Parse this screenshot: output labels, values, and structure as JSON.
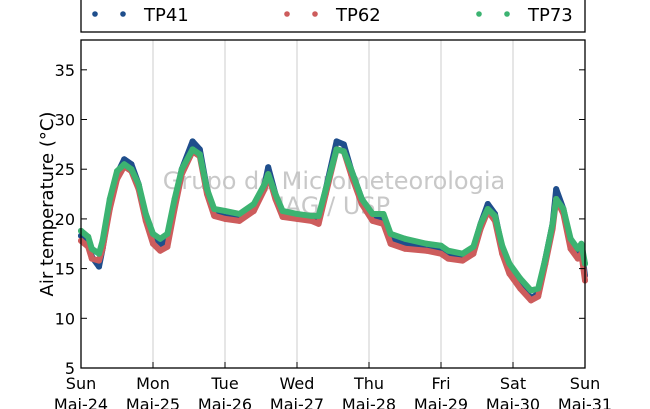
{
  "chart_data": {
    "type": "line",
    "ylabel": "Air temperature (°C)",
    "ylim": [
      5,
      38
    ],
    "yticks": [
      5,
      10,
      15,
      20,
      25,
      30,
      35
    ],
    "xlim": [
      0,
      7
    ],
    "xticks": [
      {
        "value": 0,
        "line1": "Sun",
        "line2": "Mai-24"
      },
      {
        "value": 1,
        "line1": "Mon",
        "line2": "Mai-25"
      },
      {
        "value": 2,
        "line1": "Tue",
        "line2": "Mai-26"
      },
      {
        "value": 3,
        "line1": "Wed",
        "line2": "Mai-27"
      },
      {
        "value": 4,
        "line1": "Thu",
        "line2": "Mai-28"
      },
      {
        "value": 5,
        "line1": "Fri",
        "line2": "Mai-29"
      },
      {
        "value": 6,
        "line1": "Sat",
        "line2": "Mai-30"
      },
      {
        "value": 7,
        "line1": "Sun",
        "line2": "Mai-31"
      }
    ],
    "grid": "vertical",
    "legend_position": "top",
    "watermark": [
      "Grupo de Micrometeorologia",
      "IAG / USP"
    ],
    "series": [
      {
        "name": "TP41",
        "color": "#1f4e8c",
        "points": [
          [
            0,
            18.3
          ],
          [
            0.1,
            17.8
          ],
          [
            0.15,
            16.2
          ],
          [
            0.25,
            15.2
          ],
          [
            0.3,
            17.0
          ],
          [
            0.4,
            21.5
          ],
          [
            0.5,
            24.5
          ],
          [
            0.6,
            26.0
          ],
          [
            0.7,
            25.5
          ],
          [
            0.8,
            23.5
          ],
          [
            0.9,
            20.0
          ],
          [
            1.0,
            18.0
          ],
          [
            1.1,
            17.3
          ],
          [
            1.2,
            17.8
          ],
          [
            1.3,
            21.5
          ],
          [
            1.4,
            25.0
          ],
          [
            1.55,
            27.8
          ],
          [
            1.65,
            27.0
          ],
          [
            1.75,
            23.0
          ],
          [
            1.85,
            20.5
          ],
          [
            2.0,
            20.2
          ],
          [
            2.2,
            20.0
          ],
          [
            2.4,
            21.0
          ],
          [
            2.55,
            23.5
          ],
          [
            2.6,
            25.2
          ],
          [
            2.7,
            22.5
          ],
          [
            2.8,
            20.5
          ],
          [
            3.0,
            20.2
          ],
          [
            3.2,
            20.0
          ],
          [
            3.3,
            20.0
          ],
          [
            3.4,
            23.0
          ],
          [
            3.55,
            27.8
          ],
          [
            3.65,
            27.5
          ],
          [
            3.75,
            25.0
          ],
          [
            3.9,
            22.0
          ],
          [
            4.05,
            20.2
          ],
          [
            4.2,
            20.0
          ],
          [
            4.3,
            18.0
          ],
          [
            4.5,
            17.5
          ],
          [
            4.8,
            17.2
          ],
          [
            5.0,
            17.0
          ],
          [
            5.1,
            16.5
          ],
          [
            5.3,
            16.3
          ],
          [
            5.45,
            17.0
          ],
          [
            5.55,
            19.5
          ],
          [
            5.65,
            21.5
          ],
          [
            5.75,
            20.5
          ],
          [
            5.85,
            17.0
          ],
          [
            5.95,
            15.0
          ],
          [
            6.1,
            13.5
          ],
          [
            6.25,
            12.0
          ],
          [
            6.35,
            12.5
          ],
          [
            6.45,
            16.0
          ],
          [
            6.55,
            19.5
          ],
          [
            6.6,
            23.0
          ],
          [
            6.7,
            21.0
          ],
          [
            6.8,
            17.5
          ],
          [
            6.9,
            16.5
          ],
          [
            6.95,
            17.0
          ],
          [
            7.0,
            14.3
          ]
        ]
      },
      {
        "name": "TP62",
        "color": "#cd5c5c",
        "points": [
          [
            0,
            17.8
          ],
          [
            0.1,
            17.2
          ],
          [
            0.15,
            16.0
          ],
          [
            0.25,
            15.8
          ],
          [
            0.3,
            17.0
          ],
          [
            0.4,
            21.0
          ],
          [
            0.5,
            24.0
          ],
          [
            0.6,
            25.3
          ],
          [
            0.7,
            24.8
          ],
          [
            0.8,
            23.0
          ],
          [
            0.9,
            19.8
          ],
          [
            1.0,
            17.5
          ],
          [
            1.1,
            16.8
          ],
          [
            1.2,
            17.2
          ],
          [
            1.3,
            21.0
          ],
          [
            1.4,
            24.5
          ],
          [
            1.55,
            26.8
          ],
          [
            1.65,
            26.3
          ],
          [
            1.75,
            22.5
          ],
          [
            1.85,
            20.3
          ],
          [
            2.0,
            20.0
          ],
          [
            2.2,
            19.8
          ],
          [
            2.4,
            20.8
          ],
          [
            2.55,
            23.0
          ],
          [
            2.6,
            24.5
          ],
          [
            2.7,
            22.0
          ],
          [
            2.8,
            20.2
          ],
          [
            3.0,
            20.0
          ],
          [
            3.2,
            19.8
          ],
          [
            3.3,
            19.5
          ],
          [
            3.4,
            22.5
          ],
          [
            3.55,
            27.0
          ],
          [
            3.65,
            26.8
          ],
          [
            3.75,
            24.5
          ],
          [
            3.9,
            21.5
          ],
          [
            4.05,
            19.8
          ],
          [
            4.2,
            19.5
          ],
          [
            4.3,
            17.5
          ],
          [
            4.5,
            17.0
          ],
          [
            4.8,
            16.8
          ],
          [
            5.0,
            16.5
          ],
          [
            5.1,
            16.0
          ],
          [
            5.3,
            15.8
          ],
          [
            5.45,
            16.5
          ],
          [
            5.55,
            19.0
          ],
          [
            5.65,
            20.8
          ],
          [
            5.75,
            19.8
          ],
          [
            5.85,
            16.5
          ],
          [
            5.95,
            14.5
          ],
          [
            6.1,
            13.0
          ],
          [
            6.25,
            11.8
          ],
          [
            6.35,
            12.2
          ],
          [
            6.45,
            15.5
          ],
          [
            6.55,
            19.0
          ],
          [
            6.6,
            22.0
          ],
          [
            6.7,
            20.5
          ],
          [
            6.8,
            17.0
          ],
          [
            6.9,
            16.0
          ],
          [
            6.95,
            16.5
          ],
          [
            7.0,
            13.8
          ]
        ]
      },
      {
        "name": "TP73",
        "color": "#3cb371",
        "points": [
          [
            0,
            18.8
          ],
          [
            0.1,
            18.2
          ],
          [
            0.15,
            17.0
          ],
          [
            0.25,
            16.5
          ],
          [
            0.3,
            17.8
          ],
          [
            0.4,
            22.0
          ],
          [
            0.5,
            24.8
          ],
          [
            0.6,
            25.5
          ],
          [
            0.7,
            25.0
          ],
          [
            0.8,
            23.5
          ],
          [
            0.9,
            20.5
          ],
          [
            1.0,
            18.5
          ],
          [
            1.1,
            18.0
          ],
          [
            1.2,
            18.5
          ],
          [
            1.3,
            22.0
          ],
          [
            1.4,
            25.0
          ],
          [
            1.55,
            27.0
          ],
          [
            1.65,
            26.5
          ],
          [
            1.75,
            23.0
          ],
          [
            1.85,
            21.0
          ],
          [
            2.0,
            20.8
          ],
          [
            2.2,
            20.5
          ],
          [
            2.4,
            21.5
          ],
          [
            2.55,
            23.5
          ],
          [
            2.6,
            24.5
          ],
          [
            2.7,
            22.5
          ],
          [
            2.8,
            20.8
          ],
          [
            3.0,
            20.5
          ],
          [
            3.2,
            20.3
          ],
          [
            3.3,
            20.3
          ],
          [
            3.4,
            23.0
          ],
          [
            3.55,
            27.0
          ],
          [
            3.65,
            26.8
          ],
          [
            3.75,
            25.0
          ],
          [
            3.9,
            22.0
          ],
          [
            4.05,
            20.5
          ],
          [
            4.2,
            20.5
          ],
          [
            4.3,
            18.5
          ],
          [
            4.5,
            18.0
          ],
          [
            4.8,
            17.5
          ],
          [
            5.0,
            17.3
          ],
          [
            5.1,
            16.8
          ],
          [
            5.3,
            16.5
          ],
          [
            5.45,
            17.2
          ],
          [
            5.55,
            19.5
          ],
          [
            5.65,
            21.0
          ],
          [
            5.75,
            20.3
          ],
          [
            5.85,
            17.3
          ],
          [
            5.95,
            15.5
          ],
          [
            6.1,
            14.0
          ],
          [
            6.25,
            12.8
          ],
          [
            6.35,
            13.0
          ],
          [
            6.45,
            16.0
          ],
          [
            6.55,
            19.5
          ],
          [
            6.6,
            22.0
          ],
          [
            6.7,
            21.0
          ],
          [
            6.8,
            18.0
          ],
          [
            6.9,
            17.0
          ],
          [
            6.95,
            17.5
          ],
          [
            7.0,
            15.5
          ]
        ]
      }
    ]
  }
}
